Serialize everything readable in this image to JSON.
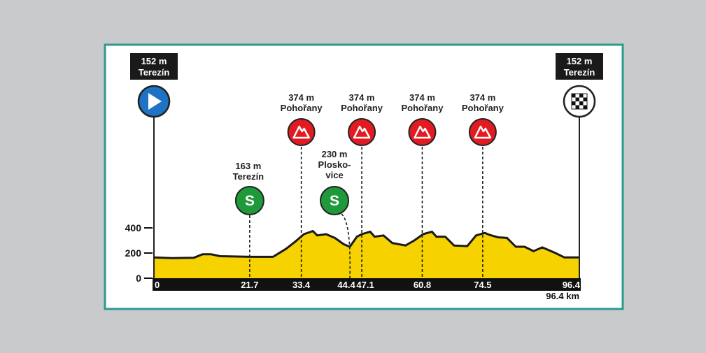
{
  "chart_data": {
    "type": "area",
    "unit": "km",
    "total_label": "96.4 km",
    "ylim": [
      0,
      450
    ],
    "xlim": [
      0,
      96.4
    ],
    "y_ticks": [
      "0",
      "200",
      "400"
    ],
    "y_tick_values": [
      0,
      200,
      400
    ],
    "x_tick_labels": [
      "0",
      "21.7",
      "33.4",
      "44.4",
      "47.1",
      "60.8",
      "74.5",
      "96.4"
    ],
    "x_tick_values": [
      0,
      21.7,
      33.4,
      44.4,
      47.1,
      60.8,
      74.5,
      96.4
    ],
    "profile": [
      [
        0,
        165
      ],
      [
        4,
        160
      ],
      [
        9,
        162
      ],
      [
        11,
        190
      ],
      [
        13,
        190
      ],
      [
        15,
        175
      ],
      [
        22,
        170
      ],
      [
        27,
        170
      ],
      [
        30,
        235
      ],
      [
        32,
        290
      ],
      [
        34,
        350
      ],
      [
        36,
        375
      ],
      [
        37,
        340
      ],
      [
        39,
        350
      ],
      [
        41,
        320
      ],
      [
        43,
        270
      ],
      [
        44.4,
        250
      ],
      [
        46,
        330
      ],
      [
        47.1,
        350
      ],
      [
        49,
        370
      ],
      [
        50,
        330
      ],
      [
        52,
        340
      ],
      [
        54,
        280
      ],
      [
        57,
        260
      ],
      [
        59,
        300
      ],
      [
        61,
        350
      ],
      [
        63,
        370
      ],
      [
        64,
        330
      ],
      [
        66,
        330
      ],
      [
        68,
        260
      ],
      [
        71,
        255
      ],
      [
        73,
        340
      ],
      [
        75,
        360
      ],
      [
        76,
        345
      ],
      [
        78,
        325
      ],
      [
        80,
        320
      ],
      [
        82,
        250
      ],
      [
        84,
        250
      ],
      [
        86,
        215
      ],
      [
        88,
        245
      ],
      [
        91,
        200
      ],
      [
        93,
        165
      ],
      [
        96.4,
        165
      ]
    ],
    "start": {
      "label_elev": "152 m",
      "label_place": "Terezín",
      "km": 0
    },
    "finish": {
      "label_elev": "152 m",
      "label_place": "Terezín",
      "km": 96.4
    },
    "sprints": [
      {
        "km": 21.7,
        "elev": "163 m",
        "place": "Terezín",
        "symbol": "S"
      },
      {
        "km": 44.4,
        "elev": "230 m",
        "place": [
          "Plosko-",
          "vice"
        ],
        "symbol": "S"
      }
    ],
    "climbs": [
      {
        "km": 33.4,
        "elev": "374 m",
        "place": "Pohořany"
      },
      {
        "km": 47.1,
        "elev": "374 m",
        "place": "Pohořany"
      },
      {
        "km": 60.8,
        "elev": "374 m",
        "place": "Pohořany"
      },
      {
        "km": 74.5,
        "elev": "374 m",
        "place": "Pohořany"
      }
    ],
    "colors": {
      "profile_fill": "#f6d200",
      "start_marker": "#1f73c4",
      "climb_marker": "#e21b22",
      "sprint_marker": "#1f9a3a",
      "frame": "#2b9b8e",
      "panel": "#ffffff"
    },
    "icons": {
      "start": "play-arrow-icon",
      "finish": "checkered-flag-icon",
      "climb": "mountain-icon",
      "sprint": "sprint-s-icon"
    }
  }
}
